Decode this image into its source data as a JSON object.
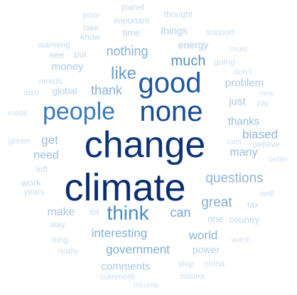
{
  "title": "",
  "palette": {
    "darkest": "#0b2d6f",
    "dark": "#15418c",
    "mid_dark": "#2b66a8",
    "mid": "#4a87bd",
    "mid_light": "#7aa8d2",
    "light": "#a9c7e3",
    "lightest": "#d2e1f0"
  },
  "words": [
    {
      "text": "change",
      "color": "#0d3377"
    },
    {
      "text": "climate",
      "color": "#0b2d6f"
    },
    {
      "text": "none",
      "color": "#194c93"
    },
    {
      "text": "good",
      "color": "#1f5a9f"
    },
    {
      "text": "people",
      "color": "#3a7bb7"
    },
    {
      "text": "think",
      "color": "#4a8dc6"
    },
    {
      "text": "like",
      "color": "#6a9fcf"
    },
    {
      "text": "much",
      "color": "#5a8fc3"
    },
    {
      "text": "nothing",
      "color": "#86b1d8"
    },
    {
      "text": "thank",
      "color": "#8ab3d8"
    },
    {
      "text": "questions",
      "color": "#8fb6da"
    },
    {
      "text": "great",
      "color": "#82afd6"
    },
    {
      "text": "interesting",
      "color": "#84b0d6"
    },
    {
      "text": "government",
      "color": "#80aed5"
    },
    {
      "text": "can",
      "color": "#7aa9d3"
    },
    {
      "text": "biased",
      "color": "#8db5da"
    },
    {
      "text": "world",
      "color": "#8cb4d9"
    },
    {
      "text": "thanks",
      "color": "#9bbfdf"
    },
    {
      "text": "many",
      "color": "#98bddf"
    },
    {
      "text": "get",
      "color": "#9cc0e0"
    },
    {
      "text": "need",
      "color": "#a0c3e1"
    },
    {
      "text": "make",
      "color": "#a7c7e3"
    },
    {
      "text": "comments",
      "color": "#a9c8e4"
    },
    {
      "text": "money",
      "color": "#aecbe5"
    },
    {
      "text": "problem",
      "color": "#adcbe5"
    },
    {
      "text": "energy",
      "color": "#b0cde6"
    },
    {
      "text": "things",
      "color": "#b2cfe7"
    },
    {
      "text": "just",
      "color": "#acc9e5"
    },
    {
      "text": "power",
      "color": "#b8d2e9"
    },
    {
      "text": "global",
      "color": "#b4cfe8"
    },
    {
      "text": "one",
      "color": "#bcd5ea"
    },
    {
      "text": "time",
      "color": "#bdd5eb"
    },
    {
      "text": "country",
      "color": "#c1d8ec"
    },
    {
      "text": "important",
      "color": "#c2d9ec"
    },
    {
      "text": "thought",
      "color": "#c4daed"
    },
    {
      "text": "planet",
      "color": "#c6dbee"
    },
    {
      "text": "poor",
      "color": "#c8ddee"
    },
    {
      "text": "take",
      "color": "#c6dbee"
    },
    {
      "text": "know",
      "color": "#c4daed"
    },
    {
      "text": "support",
      "color": "#cadeef"
    },
    {
      "text": "warming",
      "color": "#c8ddef"
    },
    {
      "text": "see",
      "color": "#c2d8ec"
    },
    {
      "text": "put",
      "color": "#c6dbee"
    },
    {
      "text": "must",
      "color": "#cfe1f0"
    },
    {
      "text": "going",
      "color": "#cfe1f0"
    },
    {
      "text": "don't",
      "color": "#cfe1f0"
    },
    {
      "text": "pay",
      "color": "#d1e2f1"
    },
    {
      "text": "needs",
      "color": "#cadeef"
    },
    {
      "text": "also",
      "color": "#ccdfef"
    },
    {
      "text": "new",
      "color": "#d1e2f1"
    },
    {
      "text": "made",
      "color": "#cfe1f0"
    },
    {
      "text": "green",
      "color": "#d0e1f0"
    },
    {
      "text": "cars",
      "color": "#d2e2f1"
    },
    {
      "text": "believe",
      "color": "#cce0f0"
    },
    {
      "text": "better",
      "color": "#d4e4f2"
    },
    {
      "text": "left",
      "color": "#c6dbee"
    },
    {
      "text": "work",
      "color": "#c4daed"
    },
    {
      "text": "years",
      "color": "#ccdfef"
    },
    {
      "text": "well",
      "color": "#cfe1f0"
    },
    {
      "text": "tax",
      "color": "#cadeef"
    },
    {
      "text": "lot",
      "color": "#c6dbee"
    },
    {
      "text": "way",
      "color": "#c8ddef"
    },
    {
      "text": "long",
      "color": "#cadeef"
    },
    {
      "text": "want",
      "color": "#cfe1f0"
    },
    {
      "text": "really",
      "color": "#cfe1f0"
    },
    {
      "text": "stop",
      "color": "#cadeef"
    },
    {
      "text": "china",
      "color": "#cadeef"
    },
    {
      "text": "comment",
      "color": "#cfe1f0"
    },
    {
      "text": "issues",
      "color": "#cadeef"
    },
    {
      "text": "income",
      "color": "#d1e2f1"
    }
  ]
}
